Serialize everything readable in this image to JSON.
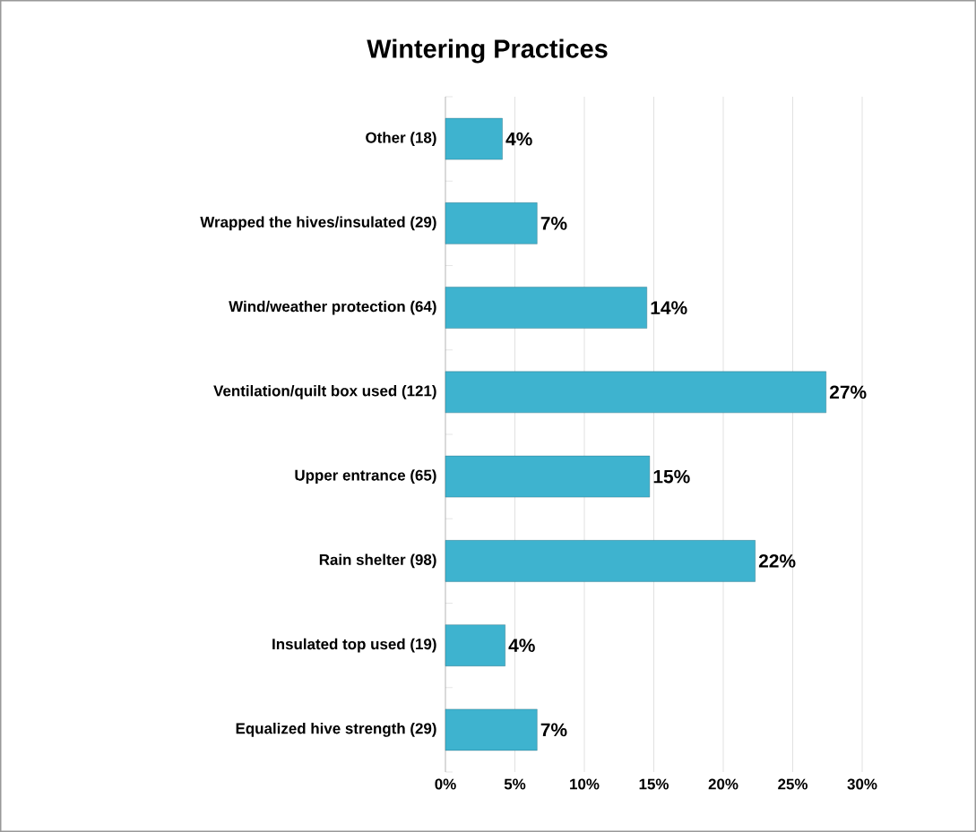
{
  "chart_data": {
    "type": "bar",
    "orientation": "horizontal",
    "title": "Wintering Practices",
    "categories": [
      "Other (18)",
      "Wrapped the hives/insulated (29)",
      "Wind/weather protection (64)",
      "Ventilation/quilt box used (121)",
      "Upper entrance (65)",
      "Rain shelter (98)",
      "Insulated top used (19)",
      "Equalized hive strength (29)"
    ],
    "values": [
      4.1,
      6.6,
      14.5,
      27.4,
      14.7,
      22.3,
      4.3,
      6.6
    ],
    "value_labels": [
      "4%",
      "7%",
      "14%",
      "27%",
      "15%",
      "22%",
      "4%",
      "7%"
    ],
    "color": "#3eb3cf",
    "xlim": [
      0,
      30
    ],
    "xticks": [
      {
        "value": 0,
        "label": "0%"
      },
      {
        "value": 5,
        "label": "5%"
      },
      {
        "value": 10,
        "label": "10%"
      },
      {
        "value": 15,
        "label": "15%"
      },
      {
        "value": 20,
        "label": "20%"
      },
      {
        "value": 25,
        "label": "25%"
      },
      {
        "value": 30,
        "label": "30%"
      }
    ],
    "grid": "x"
  }
}
